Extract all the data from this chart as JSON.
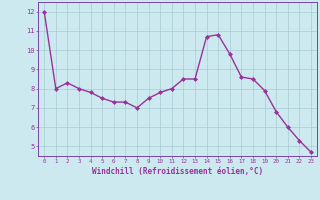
{
  "x": [
    0,
    1,
    2,
    3,
    4,
    5,
    6,
    7,
    8,
    9,
    10,
    11,
    12,
    13,
    14,
    15,
    16,
    17,
    18,
    19,
    20,
    21,
    22,
    23
  ],
  "y": [
    12.0,
    8.0,
    8.3,
    8.0,
    7.8,
    7.5,
    7.3,
    7.3,
    7.0,
    7.5,
    7.8,
    8.0,
    8.5,
    8.5,
    10.7,
    10.8,
    9.8,
    8.6,
    8.5,
    7.9,
    6.8,
    6.0,
    5.3,
    4.7
  ],
  "line_color": "#993399",
  "marker": "D",
  "marker_size": 2.0,
  "linewidth": 1.0,
  "bg_color": "#cce9f0",
  "grid_color": "#aaccd4",
  "xlabel": "Windchill (Refroidissement éolien,°C)",
  "xlabel_color": "#993399",
  "tick_color": "#993399",
  "spine_color": "#7744aa",
  "ylim": [
    4.5,
    12.5
  ],
  "xlim": [
    -0.5,
    23.5
  ],
  "yticks": [
    5,
    6,
    7,
    8,
    9,
    10,
    11,
    12
  ],
  "xticks": [
    0,
    1,
    2,
    3,
    4,
    5,
    6,
    7,
    8,
    9,
    10,
    11,
    12,
    13,
    14,
    15,
    16,
    17,
    18,
    19,
    20,
    21,
    22,
    23
  ]
}
